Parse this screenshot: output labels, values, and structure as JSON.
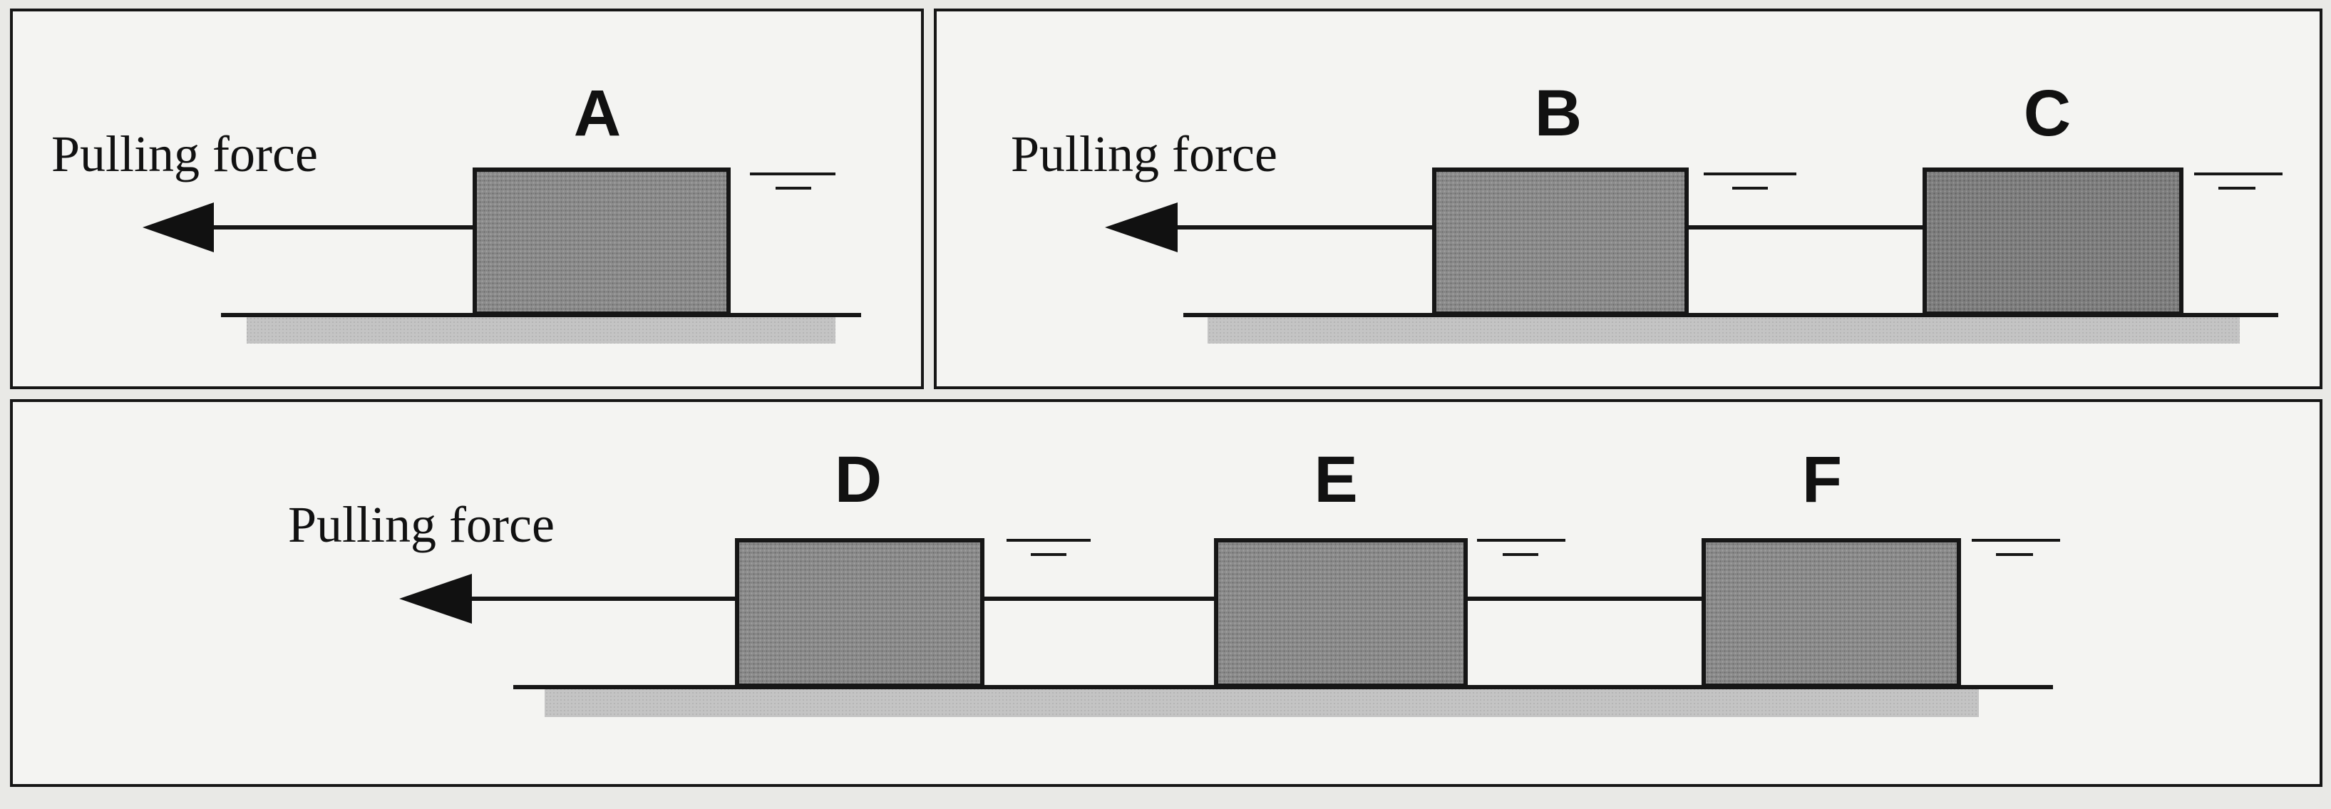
{
  "colors": {
    "paper": "#e9e9e6",
    "panel": "#f4f4f2",
    "ink": "#161616",
    "block": "#8f8f8f",
    "block_dark": "#7f7f7f",
    "shadow": "#bdbdbd"
  },
  "icons": [
    "arrowhead-left-icon",
    "surface-level-icon"
  ],
  "panels": [
    {
      "id": "panel-1",
      "force_label": "Pulling force",
      "blocks": [
        {
          "label": "A"
        }
      ]
    },
    {
      "id": "panel-2",
      "force_label": "Pulling force",
      "blocks": [
        {
          "label": "B"
        },
        {
          "label": "C"
        }
      ]
    },
    {
      "id": "panel-3",
      "force_label": "Pulling force",
      "blocks": [
        {
          "label": "D"
        },
        {
          "label": "E"
        },
        {
          "label": "F"
        }
      ]
    }
  ]
}
